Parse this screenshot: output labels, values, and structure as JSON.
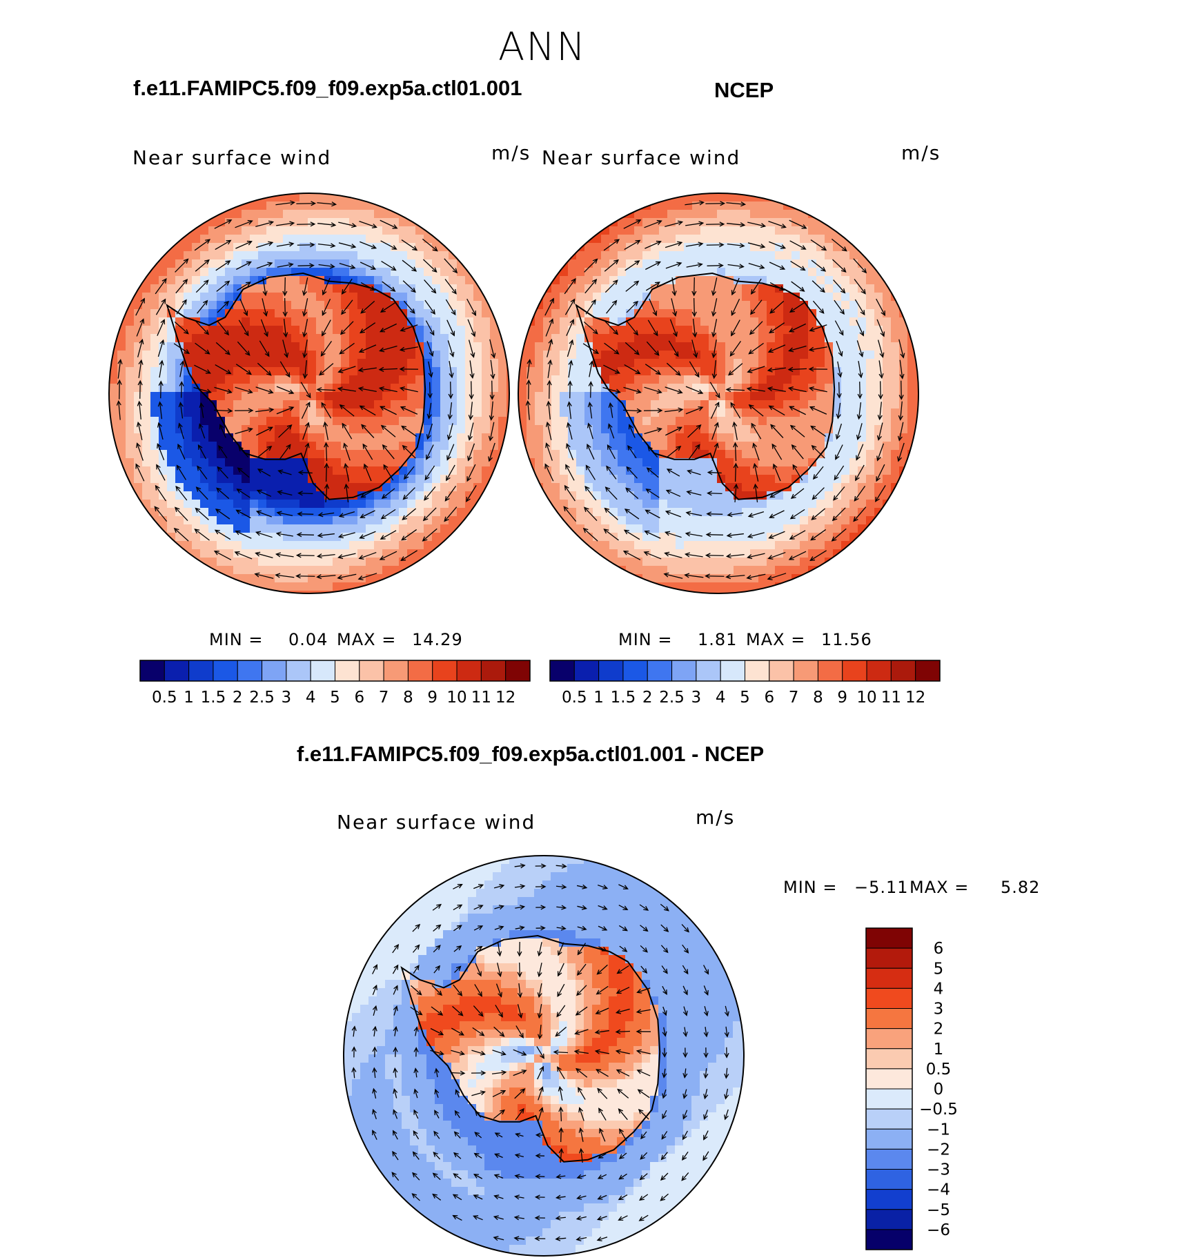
{
  "page_title": "ANN",
  "colors": {
    "paper": "#ffffff",
    "ink": "#000000",
    "land_outline": "#000000"
  },
  "chart_data": [
    {
      "type": "heatmap",
      "projection": "south-polar-stereographic",
      "case_title": "f.e11.FAMIPC5.f09_f09.exp5a.ctl01.001",
      "variable": "Near surface wind",
      "units": "m/s",
      "min_label": "MIN =",
      "min_value": "0.04",
      "max_label": "MAX =",
      "max_value": "14.29",
      "colorbar": {
        "orientation": "horizontal",
        "levels": [
          "0.5",
          "1",
          "1.5",
          "2",
          "2.5",
          "3",
          "4",
          "5",
          "6",
          "7",
          "8",
          "9",
          "10",
          "11",
          "12"
        ],
        "colors": [
          "#08006b",
          "#0a1fae",
          "#0f3ccc",
          "#1b58e6",
          "#3f76f0",
          "#7ea4f5",
          "#abc6f8",
          "#d7e8fb",
          "#fde3d2",
          "#fbc2a8",
          "#f79a76",
          "#f36c45",
          "#e8431d",
          "#cd2a12",
          "#ab1a0c",
          "#7f0404"
        ]
      },
      "fields": {
        "land_band": 9.4,
        "coast_trough": 0.9,
        "mid_band": 4.8,
        "outer_ring": 8.2,
        "west_bay": 1.1
      }
    },
    {
      "type": "heatmap",
      "projection": "south-polar-stereographic",
      "case_title": "NCEP",
      "variable": "Near surface wind",
      "units": "m/s",
      "min_label": "MIN =",
      "min_value": "1.81",
      "max_label": "MAX =",
      "max_value": "11.56",
      "colorbar": {
        "orientation": "horizontal",
        "levels": [
          "0.5",
          "1",
          "1.5",
          "2",
          "2.5",
          "3",
          "4",
          "5",
          "6",
          "7",
          "8",
          "9",
          "10",
          "11",
          "12"
        ],
        "colors": [
          "#08006b",
          "#0a1fae",
          "#0f3ccc",
          "#1b58e6",
          "#3f76f0",
          "#7ea4f5",
          "#abc6f8",
          "#d7e8fb",
          "#fde3d2",
          "#fbc2a8",
          "#f79a76",
          "#f36c45",
          "#e8431d",
          "#cd2a12",
          "#ab1a0c",
          "#7f0404"
        ]
      },
      "fields": {
        "land_band": 8.6,
        "coast_trough": 3.6,
        "mid_band": 5.2,
        "outer_ring": 8.6,
        "west_bay": 2.7
      }
    },
    {
      "type": "heatmap",
      "projection": "south-polar-stereographic",
      "case_title": "f.e11.FAMIPC5.f09_f09.exp5a.ctl01.001 - NCEP",
      "variable": "Near surface wind",
      "units": "m/s",
      "min_label": "MIN =",
      "min_value": "−5.11",
      "max_label": "MAX =",
      "max_value": "5.82",
      "colorbar": {
        "orientation": "vertical",
        "levels": [
          "6",
          "5",
          "4",
          "3",
          "2",
          "1",
          "0.5",
          "0",
          "−0.5",
          "−1",
          "−2",
          "−3",
          "−4",
          "−5",
          "−6"
        ],
        "colors": [
          "#7f0404",
          "#b31a0c",
          "#d62d12",
          "#f04a1e",
          "#f57640",
          "#f9a27c",
          "#fbcbb1",
          "#fde8dc",
          "#dbeafb",
          "#b9d0f8",
          "#8cb0f4",
          "#5b88ee",
          "#2f63e2",
          "#123fcf",
          "#0921a6",
          "#06006a"
        ]
      },
      "fields": {
        "land_band": 1.6,
        "coast_trough": -2.4,
        "mid_band": -1.2,
        "outer_ring": -0.7,
        "west_bay": -1.6
      }
    }
  ]
}
